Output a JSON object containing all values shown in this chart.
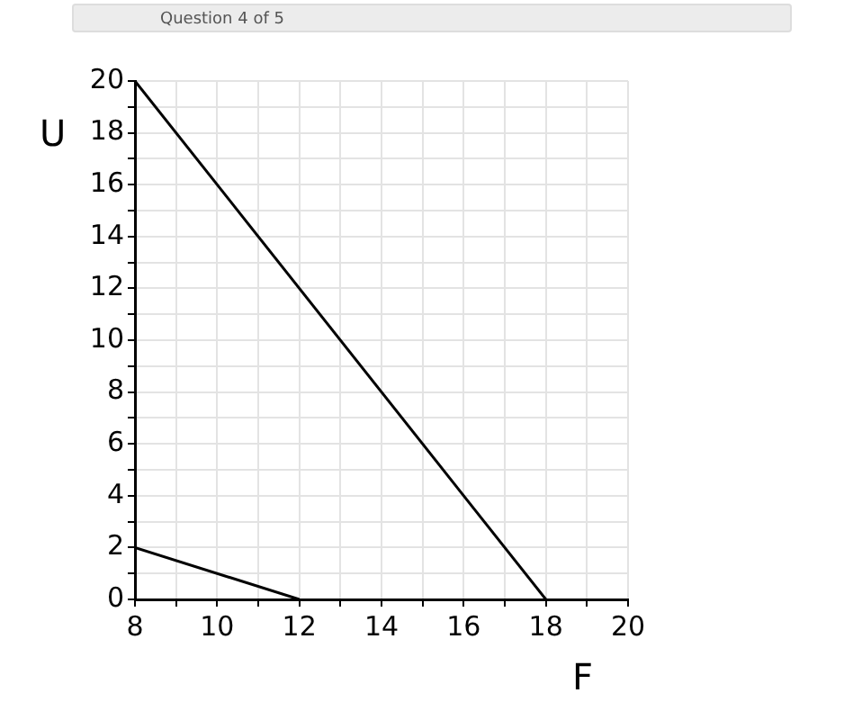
{
  "chart_data": {
    "type": "line",
    "xlabel": "F",
    "ylabel": "U",
    "annotations": [
      "Question 4 of 5"
    ],
    "xlim": [
      8,
      20
    ],
    "ylim": [
      0,
      20
    ],
    "xticks": [
      8,
      {
        "value": 9,
        "label": null
      },
      10,
      {
        "value": 11,
        "label": null
      },
      12,
      {
        "value": 13,
        "label": null
      },
      14,
      {
        "value": 15,
        "label": null
      },
      16,
      {
        "value": 17,
        "label": null
      },
      18,
      {
        "value": 19,
        "label": null
      },
      20
    ],
    "yticks": [
      0,
      {
        "value": 1,
        "label": null
      },
      2,
      {
        "value": 3,
        "label": null
      },
      4,
      {
        "value": 5,
        "label": null
      },
      6,
      {
        "value": 7,
        "label": null
      },
      8,
      {
        "value": 9,
        "label": null
      },
      10,
      {
        "value": 11,
        "label": null
      },
      12,
      {
        "value": 13,
        "label": null
      },
      14,
      {
        "value": 15,
        "label": null
      },
      16,
      {
        "value": 17,
        "label": null
      },
      18,
      {
        "value": 19,
        "label": null
      },
      20
    ],
    "grid": true,
    "legend": false,
    "marker": "none",
    "line_style": "solid",
    "series": [
      {
        "color": "#000000",
        "x": [
          8,
          18
        ],
        "values": [
          20,
          0
        ]
      },
      {
        "color": "#000000",
        "x": [
          8,
          12
        ],
        "values": [
          2,
          0
        ]
      }
    ]
  }
}
